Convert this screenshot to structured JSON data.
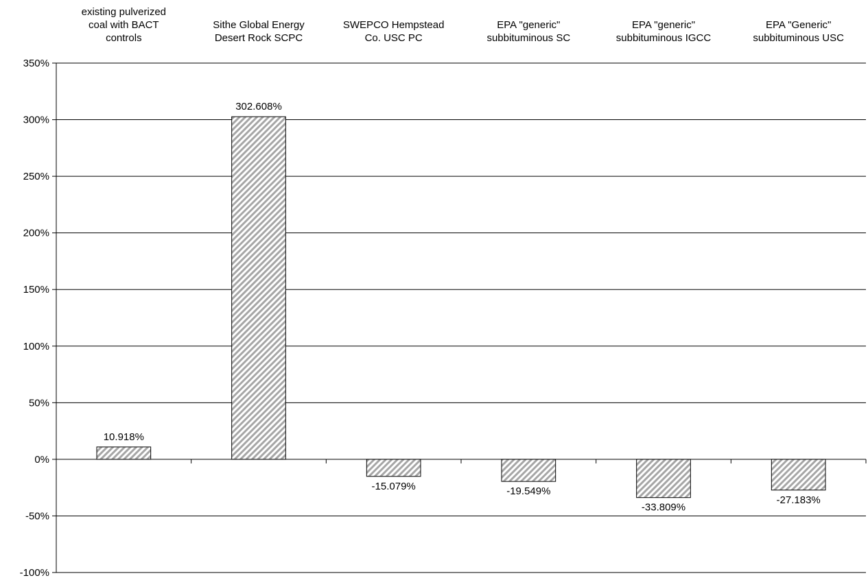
{
  "chart_data": {
    "type": "bar",
    "title": "",
    "xlabel": "",
    "ylabel": "",
    "categories": [
      [
        "existing pulverized",
        "coal with BACT",
        "controls"
      ],
      [
        "Sithe Global Energy",
        "Desert Rock SCPC"
      ],
      [
        "SWEPCO Hempstead",
        "Co. USC PC"
      ],
      [
        "EPA \"generic\"",
        "subbituminous SC"
      ],
      [
        "EPA \"generic\"",
        "subbituminous IGCC"
      ],
      [
        "EPA \"Generic\"",
        "subbituminous USC"
      ]
    ],
    "values": [
      10.918,
      302.608,
      -15.079,
      -19.549,
      -33.809,
      -27.183
    ],
    "value_labels": [
      "10.918%",
      "302.608%",
      "-15.079%",
      "-19.549%",
      "-33.809%",
      "-27.183%"
    ],
    "ylim": [
      -100,
      350
    ],
    "yticks": [
      350,
      300,
      250,
      200,
      150,
      100,
      50,
      0,
      -50,
      -100
    ],
    "ytick_labels": [
      "350%",
      "300%",
      "250%",
      "200%",
      "150%",
      "100%",
      "50%",
      "0%",
      "-50%",
      "-100%"
    ],
    "grid": true,
    "legend": "none",
    "colors": {
      "bar_fill": "#ffffff",
      "bar_hatch": "#a6a6a6",
      "bar_stroke": "#000000",
      "grid": "#000000"
    }
  }
}
